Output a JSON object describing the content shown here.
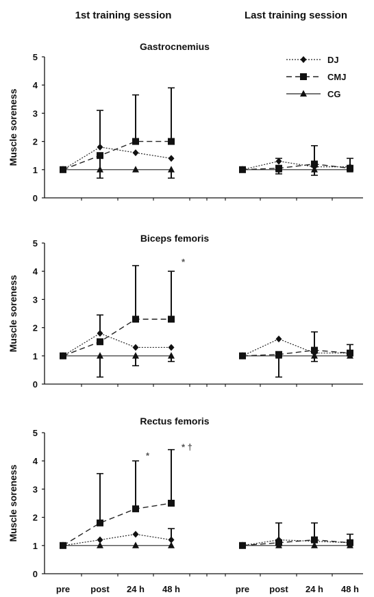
{
  "headers": {
    "left": "1st training session",
    "right": "Last training session"
  },
  "legend": [
    {
      "series": "DJ",
      "label": "DJ"
    },
    {
      "series": "CMJ",
      "label": "CMJ"
    },
    {
      "series": "CG",
      "label": "CG"
    }
  ],
  "chart_data": [
    {
      "type": "line",
      "title": "Gastrocnemius",
      "ylabel": "Muscle soreness",
      "ylim": [
        0,
        5
      ],
      "yticks": [
        "0",
        "1",
        "2",
        "3",
        "4",
        "5"
      ],
      "categories": [
        "pre",
        "post",
        "24 h",
        "48 h"
      ],
      "show_x_labels": false,
      "annotations": [],
      "sessions": [
        {
          "name": "1st training session",
          "series": [
            {
              "name": "DJ",
              "values": [
                1,
                1.8,
                1.6,
                1.4
              ],
              "err_up": [
                0,
                1.3,
                0,
                0
              ],
              "err_down": [
                0,
                0,
                0,
                0
              ]
            },
            {
              "name": "CMJ",
              "values": [
                1,
                1.5,
                2.0,
                2.0
              ],
              "err_up": [
                0,
                0,
                1.65,
                1.9
              ],
              "err_down": [
                0,
                0.8,
                0,
                0
              ]
            },
            {
              "name": "CG",
              "values": [
                1,
                1,
                1,
                1
              ],
              "err_up": [
                0,
                0,
                0,
                0
              ],
              "err_down": [
                0,
                0,
                0,
                0.3
              ]
            }
          ]
        },
        {
          "name": "Last training session",
          "series": [
            {
              "name": "DJ",
              "values": [
                1,
                1.3,
                1.1,
                1.1
              ],
              "err_up": [
                0,
                0.1,
                0,
                0.3
              ],
              "err_down": [
                0,
                0,
                0,
                0
              ]
            },
            {
              "name": "CMJ",
              "values": [
                1,
                1.05,
                1.2,
                1.05
              ],
              "err_up": [
                0,
                0,
                0.65,
                0
              ],
              "err_down": [
                0,
                0.2,
                0.4,
                0
              ]
            },
            {
              "name": "CG",
              "values": [
                1,
                1,
                1,
                1
              ],
              "err_up": [
                0,
                0,
                0,
                0
              ],
              "err_down": [
                0,
                0,
                0,
                0
              ]
            }
          ]
        }
      ]
    },
    {
      "type": "line",
      "title": "Biceps femoris",
      "ylabel": "Muscle soreness",
      "ylim": [
        0,
        5
      ],
      "yticks": [
        "0",
        "1",
        "2",
        "3",
        "4",
        "5"
      ],
      "categories": [
        "pre",
        "post",
        "24 h",
        "48 h"
      ],
      "show_x_labels": false,
      "annotations": [
        {
          "text": "*",
          "session": 0,
          "category": 3,
          "y": 4.35
        }
      ],
      "sessions": [
        {
          "name": "1st training session",
          "series": [
            {
              "name": "DJ",
              "values": [
                1,
                1.8,
                1.3,
                1.3
              ],
              "err_up": [
                0,
                0.65,
                0,
                0
              ],
              "err_down": [
                0,
                0,
                0,
                0
              ]
            },
            {
              "name": "CMJ",
              "values": [
                1,
                1.5,
                2.3,
                2.3
              ],
              "err_up": [
                0,
                0,
                1.9,
                1.7
              ],
              "err_down": [
                0,
                0,
                0,
                0
              ]
            },
            {
              "name": "CG",
              "values": [
                1,
                1,
                1,
                1
              ],
              "err_up": [
                0,
                0,
                0,
                0
              ],
              "err_down": [
                0,
                0.75,
                0.35,
                0.2
              ]
            }
          ]
        },
        {
          "name": "Last training session",
          "series": [
            {
              "name": "DJ",
              "values": [
                1,
                1.6,
                1.1,
                1.1
              ],
              "err_up": [
                0,
                0,
                0,
                0
              ],
              "err_down": [
                0,
                0,
                0,
                0
              ]
            },
            {
              "name": "CMJ",
              "values": [
                1,
                1.05,
                1.2,
                1.1
              ],
              "err_up": [
                0,
                0,
                0.65,
                0.3
              ],
              "err_down": [
                0,
                0.8,
                0.4,
                0
              ]
            },
            {
              "name": "CG",
              "values": [
                1,
                1,
                1,
                1
              ],
              "err_up": [
                0,
                0,
                0,
                0
              ],
              "err_down": [
                0,
                0,
                0,
                0
              ]
            }
          ]
        }
      ]
    },
    {
      "type": "line",
      "title": "Rectus femoris",
      "ylabel": "Muscle soreness",
      "ylim": [
        0,
        5
      ],
      "yticks": [
        "0",
        "1",
        "2",
        "3",
        "4",
        "5"
      ],
      "categories": [
        "pre",
        "post",
        "24 h",
        "48 h"
      ],
      "show_x_labels": true,
      "annotations": [
        {
          "text": "*",
          "session": 0,
          "category": 2,
          "y": 4.2
        },
        {
          "text": "* †",
          "session": 0,
          "category": 3,
          "y": 4.5
        }
      ],
      "sessions": [
        {
          "name": "1st training session",
          "series": [
            {
              "name": "DJ",
              "values": [
                1,
                1.2,
                1.4,
                1.2
              ],
              "err_up": [
                0,
                0,
                0,
                0.4
              ],
              "err_down": [
                0,
                0,
                0,
                0
              ]
            },
            {
              "name": "CMJ",
              "values": [
                1,
                1.8,
                2.3,
                2.5
              ],
              "err_up": [
                0,
                1.75,
                1.7,
                1.9
              ],
              "err_down": [
                0,
                0,
                0,
                0
              ]
            },
            {
              "name": "CG",
              "values": [
                1,
                1,
                1,
                1
              ],
              "err_up": [
                0,
                0,
                0,
                0
              ],
              "err_down": [
                0,
                0,
                0,
                0
              ]
            }
          ]
        },
        {
          "name": "Last training session",
          "series": [
            {
              "name": "DJ",
              "values": [
                1,
                1.2,
                1.15,
                1.1
              ],
              "err_up": [
                0,
                0,
                0,
                0.3
              ],
              "err_down": [
                0,
                0,
                0,
                0
              ]
            },
            {
              "name": "CMJ",
              "values": [
                1,
                1.1,
                1.2,
                1.1
              ],
              "err_up": [
                0,
                0.7,
                0.6,
                0
              ],
              "err_down": [
                0,
                0,
                0,
                0
              ]
            },
            {
              "name": "CG",
              "values": [
                1,
                1,
                1,
                1
              ],
              "err_up": [
                0,
                0,
                0,
                0
              ],
              "err_down": [
                0,
                0,
                0,
                0
              ]
            }
          ]
        }
      ]
    }
  ]
}
